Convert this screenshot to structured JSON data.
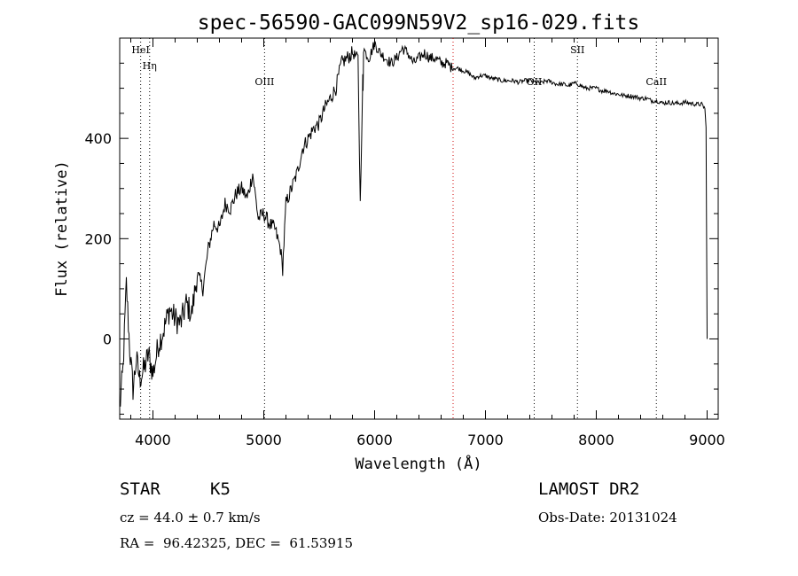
{
  "chart_data": {
    "type": "line",
    "title": "spec-56590-GAC099N59V2_sp16-029.fits",
    "xlabel": "Wavelength (Å)",
    "ylabel": "Flux (relative)",
    "xlim": [
      3700,
      9100
    ],
    "ylim": [
      -160,
      600
    ],
    "x_ticks": [
      4000,
      5000,
      6000,
      7000,
      8000,
      9000
    ],
    "x_tick_labels": [
      "4000",
      "5000",
      "6000",
      "7000",
      "8000",
      "9000"
    ],
    "y_ticks": [
      0,
      200,
      400
    ],
    "y_tick_labels": [
      "0",
      "200",
      "400"
    ],
    "grid": false,
    "series": [
      {
        "color": "#000000",
        "x": [
          3700,
          3730,
          3760,
          3790,
          3820,
          3850,
          3880,
          3920,
          3960,
          4000,
          4050,
          4100,
          4150,
          4200,
          4250,
          4300,
          4350,
          4400,
          4450,
          4500,
          4550,
          4600,
          4650,
          4700,
          4750,
          4800,
          4850,
          4900,
          4950,
          5000,
          5050,
          5100,
          5150,
          5170,
          5200,
          5250,
          5300,
          5350,
          5400,
          5450,
          5500,
          5550,
          5600,
          5650,
          5700,
          5750,
          5800,
          5850,
          5870,
          5890,
          5893,
          5896,
          5900,
          5920,
          5950,
          6000,
          6050,
          6100,
          6150,
          6200,
          6250,
          6300,
          6350,
          6400,
          6450,
          6500,
          6550,
          6600,
          6650,
          6700,
          6750,
          6800,
          6850,
          6900,
          6950,
          7000,
          7050,
          7100,
          7150,
          7200,
          7250,
          7300,
          7350,
          7400,
          7450,
          7500,
          7550,
          7600,
          7650,
          7700,
          7750,
          7800,
          7850,
          7900,
          7950,
          8000,
          8050,
          8100,
          8150,
          8200,
          8250,
          8300,
          8350,
          8400,
          8450,
          8500,
          8550,
          8600,
          8650,
          8700,
          8750,
          8800,
          8850,
          8900,
          8950,
          8980,
          8990,
          9000
        ],
        "y": [
          -140,
          -60,
          110,
          -20,
          -100,
          -40,
          -80,
          -60,
          -30,
          -70,
          -10,
          20,
          60,
          40,
          30,
          70,
          50,
          130,
          100,
          180,
          230,
          220,
          270,
          260,
          290,
          300,
          280,
          330,
          240,
          250,
          230,
          220,
          180,
          140,
          270,
          300,
          330,
          380,
          400,
          420,
          430,
          460,
          480,
          500,
          550,
          560,
          570,
          560,
          270,
          480,
          520,
          500,
          580,
          570,
          560,
          590,
          570,
          560,
          550,
          560,
          580,
          570,
          550,
          560,
          570,
          560,
          560,
          550,
          550,
          540,
          540,
          535,
          530,
          520,
          525,
          525,
          520,
          518,
          515,
          515,
          515,
          512,
          515,
          515,
          512,
          510,
          515,
          512,
          508,
          508,
          505,
          510,
          507,
          500,
          500,
          500,
          495,
          495,
          490,
          488,
          485,
          485,
          483,
          480,
          480,
          475,
          475,
          470,
          472,
          470,
          470,
          472,
          470,
          468,
          468,
          460,
          420,
          0
        ]
      }
    ],
    "reference_lines": {
      "color": "#000000",
      "x": [
        3889,
        3970,
        5007,
        7440,
        7830,
        8542
      ],
      "labels": [
        "HeI",
        "Hη",
        "OIII",
        "OII",
        "SII",
        "CaII"
      ]
    },
    "reference_lines_red": {
      "color": "#cc0000",
      "x": [
        6708
      ]
    }
  },
  "info": {
    "object_class": "STAR",
    "subclass": "K5",
    "survey": "LAMOST DR2",
    "cz": "cz = 44.0 ± 0.7 km/s",
    "obs_date": "Obs-Date: 20131024",
    "coords": "RA =  96.42325, DEC =  61.53915"
  }
}
